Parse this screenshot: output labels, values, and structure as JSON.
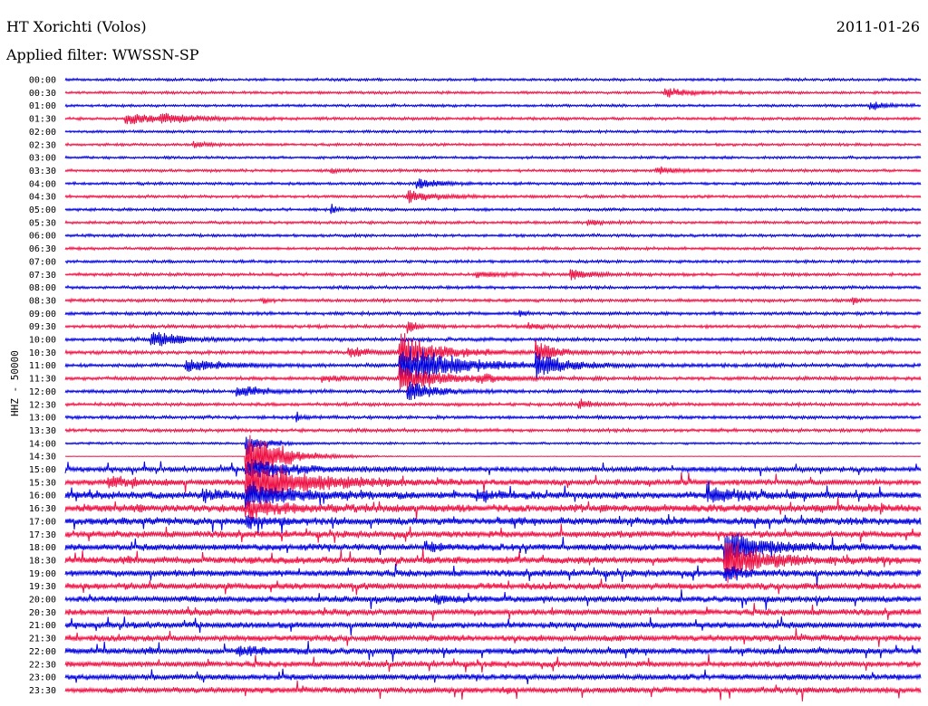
{
  "header": {
    "station": "HT Xorichti (Volos)",
    "date": "2011-01-26",
    "filter_text": "Applied filter: WWSSN-SP"
  },
  "chart_data": {
    "type": "line",
    "ylabel": "HHZ - 50000",
    "colors": {
      "even": "#0000dd",
      "odd": "#ee1144"
    },
    "rows": [
      {
        "label": "00:00",
        "noise": 1.2,
        "events": []
      },
      {
        "label": "00:30",
        "noise": 1.2,
        "events": [
          [
            0.7,
            6,
            0.03
          ]
        ]
      },
      {
        "label": "01:00",
        "noise": 1.2,
        "events": [
          [
            0.94,
            5,
            0.02
          ]
        ]
      },
      {
        "label": "01:30",
        "noise": 1.3,
        "events": [
          [
            0.07,
            6,
            0.06
          ],
          [
            0.11,
            5,
            0.03
          ]
        ]
      },
      {
        "label": "02:00",
        "noise": 1.2,
        "events": []
      },
      {
        "label": "02:30",
        "noise": 1.2,
        "events": [
          [
            0.15,
            3,
            0.02
          ]
        ]
      },
      {
        "label": "03:00",
        "noise": 1.2,
        "events": []
      },
      {
        "label": "03:30",
        "noise": 1.3,
        "events": [
          [
            0.31,
            3,
            0.01
          ],
          [
            0.69,
            5,
            0.02
          ]
        ]
      },
      {
        "label": "04:00",
        "noise": 1.3,
        "events": [
          [
            0.41,
            9,
            0.02
          ]
        ]
      },
      {
        "label": "04:30",
        "noise": 1.3,
        "events": [
          [
            0.4,
            8,
            0.03
          ]
        ]
      },
      {
        "label": "05:00",
        "noise": 1.3,
        "events": [
          [
            0.31,
            9,
            0.005
          ]
        ]
      },
      {
        "label": "05:30",
        "noise": 1.3,
        "events": [
          [
            0.61,
            4,
            0.02
          ]
        ]
      },
      {
        "label": "06:00",
        "noise": 1.3,
        "events": []
      },
      {
        "label": "06:30",
        "noise": 1.3,
        "events": []
      },
      {
        "label": "07:00",
        "noise": 1.3,
        "events": []
      },
      {
        "label": "07:30",
        "noise": 1.4,
        "events": [
          [
            0.48,
            4,
            0.03
          ],
          [
            0.59,
            9,
            0.02
          ]
        ]
      },
      {
        "label": "08:00",
        "noise": 1.4,
        "events": []
      },
      {
        "label": "08:30",
        "noise": 1.4,
        "events": [
          [
            0.23,
            6,
            0.005
          ],
          [
            0.92,
            6,
            0.005
          ]
        ]
      },
      {
        "label": "09:00",
        "noise": 1.5,
        "events": [
          [
            0.53,
            9,
            0.005
          ]
        ]
      },
      {
        "label": "09:30",
        "noise": 1.5,
        "events": [
          [
            0.4,
            9,
            0.01
          ],
          [
            0.54,
            4,
            0.02
          ]
        ]
      },
      {
        "label": "10:00",
        "noise": 1.6,
        "events": [
          [
            0.1,
            12,
            0.03
          ]
        ]
      },
      {
        "label": "10:30",
        "noise": 1.6,
        "events": [
          [
            0.33,
            6,
            0.03
          ],
          [
            0.39,
            26,
            0.04
          ],
          [
            0.55,
            16,
            0.02
          ]
        ]
      },
      {
        "label": "11:00",
        "noise": 1.6,
        "events": [
          [
            0.14,
            9,
            0.04
          ],
          [
            0.39,
            30,
            0.06
          ],
          [
            0.55,
            16,
            0.03
          ]
        ]
      },
      {
        "label": "11:30",
        "noise": 1.6,
        "events": [
          [
            0.3,
            5,
            0.02
          ],
          [
            0.39,
            22,
            0.04
          ],
          [
            0.48,
            5,
            0.03
          ]
        ]
      },
      {
        "label": "12:00",
        "noise": 1.5,
        "events": [
          [
            0.2,
            8,
            0.03
          ],
          [
            0.4,
            14,
            0.03
          ]
        ]
      },
      {
        "label": "12:30",
        "noise": 1.5,
        "events": [
          [
            0.6,
            8,
            0.01
          ]
        ]
      },
      {
        "label": "13:00",
        "noise": 1.5,
        "events": [
          [
            0.27,
            6,
            0.005
          ]
        ]
      },
      {
        "label": "13:30",
        "noise": 1.5,
        "events": []
      },
      {
        "label": "14:00",
        "noise": 1.0,
        "events": [
          [
            0.21,
            16,
            0.02
          ]
        ]
      },
      {
        "label": "14:30",
        "noise": 0.2,
        "events": [
          [
            0.21,
            38,
            0.04
          ]
        ]
      },
      {
        "label": "15:00",
        "noise": 2.2,
        "events": [
          [
            0.21,
            14,
            0.05
          ]
        ]
      },
      {
        "label": "15:30",
        "noise": 2.6,
        "events": [
          [
            0.05,
            6,
            0.04
          ],
          [
            0.21,
            36,
            0.06
          ]
        ]
      },
      {
        "label": "16:00",
        "noise": 3.2,
        "events": [
          [
            0.16,
            6,
            0.03
          ],
          [
            0.21,
            16,
            0.05
          ],
          [
            0.48,
            6,
            0.03
          ],
          [
            0.75,
            10,
            0.03
          ]
        ]
      },
      {
        "label": "16:30",
        "noise": 3.6,
        "events": [
          [
            0.21,
            12,
            0.04
          ]
        ]
      },
      {
        "label": "17:00",
        "noise": 3.4,
        "events": [
          [
            0.21,
            8,
            0.02
          ]
        ]
      },
      {
        "label": "17:30",
        "noise": 3.0,
        "events": []
      },
      {
        "label": "18:00",
        "noise": 3.0,
        "events": [
          [
            0.42,
            6,
            0.02
          ],
          [
            0.77,
            24,
            0.04
          ]
        ]
      },
      {
        "label": "18:30",
        "noise": 3.2,
        "events": [
          [
            0.77,
            28,
            0.04
          ]
        ]
      },
      {
        "label": "19:00",
        "noise": 3.0,
        "events": [
          [
            0.77,
            10,
            0.02
          ]
        ]
      },
      {
        "label": "19:30",
        "noise": 3.0,
        "events": []
      },
      {
        "label": "20:00",
        "noise": 2.8,
        "events": [
          [
            0.43,
            6,
            0.02
          ]
        ]
      },
      {
        "label": "20:30",
        "noise": 2.8,
        "events": []
      },
      {
        "label": "21:00",
        "noise": 2.8,
        "events": []
      },
      {
        "label": "21:30",
        "noise": 2.8,
        "events": []
      },
      {
        "label": "22:00",
        "noise": 2.8,
        "events": [
          [
            0.2,
            5,
            0.04
          ]
        ]
      },
      {
        "label": "22:30",
        "noise": 2.6,
        "events": []
      },
      {
        "label": "23:00",
        "noise": 2.6,
        "events": []
      },
      {
        "label": "23:30",
        "noise": 2.6,
        "events": []
      }
    ]
  }
}
